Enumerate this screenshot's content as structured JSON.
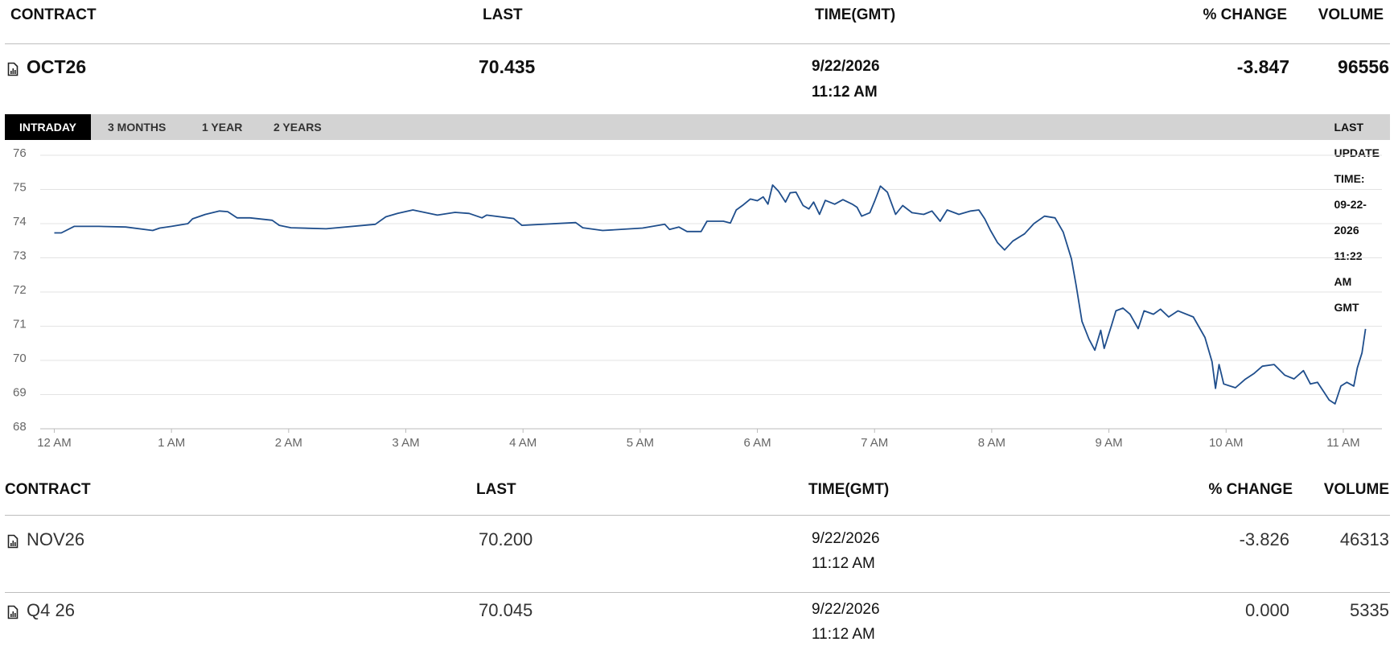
{
  "quote_table": {
    "columns": [
      "CONTRACT",
      "LAST",
      "TIME(GMT)",
      "% CHANGE",
      "VOLUME"
    ],
    "rows": [
      {
        "contract": "OCT26",
        "last": "70.435",
        "time": [
          "9/22/2026",
          "11:12 AM"
        ],
        "change": "-3.847",
        "volume": "96556"
      }
    ]
  },
  "tabs": [
    "INTRADAY",
    "3 MONTHS",
    "1 YEAR",
    "2 YEARS"
  ],
  "active_tab": 0,
  "last_update": "LAST UPDATE TIME: 09-22-2026 11:22 AM GMT",
  "chart_data": {
    "type": "line",
    "grid": true,
    "xlim": [
      -0.12,
      11.33
    ],
    "ylim": [
      68,
      76
    ],
    "yticks": [
      68,
      69,
      70,
      71,
      72,
      73,
      74,
      75,
      76
    ],
    "xticks": [
      {
        "value": 0,
        "label": "12 AM"
      },
      {
        "value": 1,
        "label": "1 AM"
      },
      {
        "value": 2,
        "label": "2 AM"
      },
      {
        "value": 3,
        "label": "3 AM"
      },
      {
        "value": 4,
        "label": "4 AM"
      },
      {
        "value": 5,
        "label": "5 AM"
      },
      {
        "value": 6,
        "label": "6 AM"
      },
      {
        "value": 7,
        "label": "7 AM"
      },
      {
        "value": 8,
        "label": "8 AM"
      },
      {
        "value": 9,
        "label": "9 AM"
      },
      {
        "value": 10,
        "label": "10 AM"
      },
      {
        "value": 11,
        "label": "11 AM"
      }
    ],
    "series": [
      {
        "name": "OCT26",
        "color": "#1f4e8c",
        "x": [
          0,
          0.06,
          0.17,
          0.38,
          0.61,
          0.84,
          0.9,
          1.0,
          1.14,
          1.18,
          1.29,
          1.41,
          1.48,
          1.56,
          1.67,
          1.86,
          1.92,
          2.02,
          2.32,
          2.74,
          2.83,
          2.93,
          3.06,
          3.27,
          3.42,
          3.54,
          3.65,
          3.69,
          3.92,
          3.99,
          4.45,
          4.51,
          4.68,
          5.02,
          5.21,
          5.25,
          5.33,
          5.4,
          5.52,
          5.57,
          5.71,
          5.77,
          5.82,
          5.88,
          5.94,
          6.0,
          6.05,
          6.09,
          6.13,
          6.18,
          6.24,
          6.28,
          6.33,
          6.39,
          6.44,
          6.48,
          6.53,
          6.58,
          6.66,
          6.73,
          6.81,
          6.85,
          6.89,
          6.96,
          7.0,
          7.05,
          7.11,
          7.18,
          7.24,
          7.32,
          7.42,
          7.49,
          7.56,
          7.62,
          7.72,
          7.82,
          7.89,
          7.94,
          7.99,
          8.05,
          8.11,
          8.18,
          8.28,
          8.36,
          8.45,
          8.54,
          8.61,
          8.68,
          8.72,
          8.77,
          8.83,
          8.88,
          8.93,
          8.96,
          9.02,
          9.06,
          9.12,
          9.18,
          9.25,
          9.3,
          9.38,
          9.44,
          9.51,
          9.59,
          9.72,
          9.82,
          9.88,
          9.91,
          9.94,
          9.98,
          10.08,
          10.16,
          10.24,
          10.31,
          10.41,
          10.5,
          10.58,
          10.66,
          10.72,
          10.78,
          10.84,
          10.88,
          10.93,
          10.98,
          11.03,
          11.09,
          11.12,
          11.16,
          11.19
        ],
        "values": [
          73.73,
          73.73,
          73.92,
          73.92,
          73.9,
          73.8,
          73.87,
          73.92,
          74.0,
          74.14,
          74.27,
          74.37,
          74.35,
          74.17,
          74.17,
          74.1,
          73.95,
          73.88,
          73.85,
          73.98,
          74.2,
          74.3,
          74.4,
          74.25,
          74.33,
          74.3,
          74.17,
          74.25,
          74.15,
          73.95,
          74.03,
          73.88,
          73.8,
          73.87,
          73.98,
          73.83,
          73.9,
          73.77,
          73.77,
          74.07,
          74.07,
          74.02,
          74.4,
          74.55,
          74.72,
          74.67,
          74.78,
          74.57,
          75.13,
          74.95,
          74.63,
          74.9,
          74.92,
          74.53,
          74.43,
          74.63,
          74.27,
          74.68,
          74.57,
          74.7,
          74.57,
          74.48,
          74.22,
          74.32,
          74.65,
          75.1,
          74.92,
          74.27,
          74.53,
          74.32,
          74.27,
          74.37,
          74.07,
          74.4,
          74.27,
          74.37,
          74.4,
          74.14,
          73.8,
          73.44,
          73.23,
          73.49,
          73.7,
          74.0,
          74.22,
          74.17,
          73.75,
          72.97,
          72.2,
          71.14,
          70.62,
          70.3,
          70.88,
          70.35,
          71.0,
          71.45,
          71.53,
          71.35,
          70.93,
          71.45,
          71.35,
          71.5,
          71.27,
          71.45,
          71.27,
          70.67,
          69.96,
          69.18,
          69.88,
          69.31,
          69.2,
          69.44,
          69.62,
          69.83,
          69.88,
          69.57,
          69.46,
          69.7,
          69.31,
          69.36,
          69.05,
          68.84,
          68.73,
          69.25,
          69.36,
          69.25,
          69.78,
          70.22,
          70.92
        ]
      }
    ]
  },
  "contracts_table": {
    "columns": [
      "CONTRACT",
      "LAST",
      "TIME(GMT)",
      "% CHANGE",
      "VOLUME"
    ],
    "rows": [
      {
        "contract": "NOV26",
        "last": "70.200",
        "time": [
          "9/22/2026",
          "11:12 AM"
        ],
        "change": "-3.826",
        "volume": "46313"
      },
      {
        "contract": "Q4 26",
        "last": "70.045",
        "time": [
          "9/22/2026",
          "11:12 AM"
        ],
        "change": "0.000",
        "volume": "5335"
      }
    ]
  }
}
